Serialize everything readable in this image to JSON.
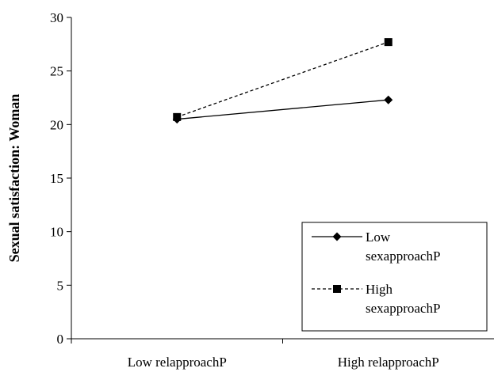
{
  "chart_data": {
    "type": "line",
    "categories": [
      "Low relapproachP",
      "High relapproachP"
    ],
    "series": [
      {
        "name": "Low sexapproachP",
        "values": [
          20.5,
          22.3
        ],
        "line_style": "solid",
        "marker": "diamond"
      },
      {
        "name": "High sexapproachP",
        "values": [
          20.7,
          27.7
        ],
        "line_style": "dashed",
        "marker": "square"
      }
    ],
    "ylabel": "Sexual satisfaction: Woman",
    "xlabel": "",
    "ylim": [
      0,
      30
    ],
    "yticks": [
      0,
      5,
      10,
      15,
      20,
      25,
      30
    ],
    "grid": false,
    "legend_position": "bottom-right",
    "legend": {
      "entries": [
        {
          "lines": [
            "Low",
            "sexapproachP"
          ]
        },
        {
          "lines": [
            "High",
            "sexapproachP"
          ]
        }
      ]
    },
    "colors": {
      "line": "#000000",
      "background": "#ffffff"
    }
  }
}
